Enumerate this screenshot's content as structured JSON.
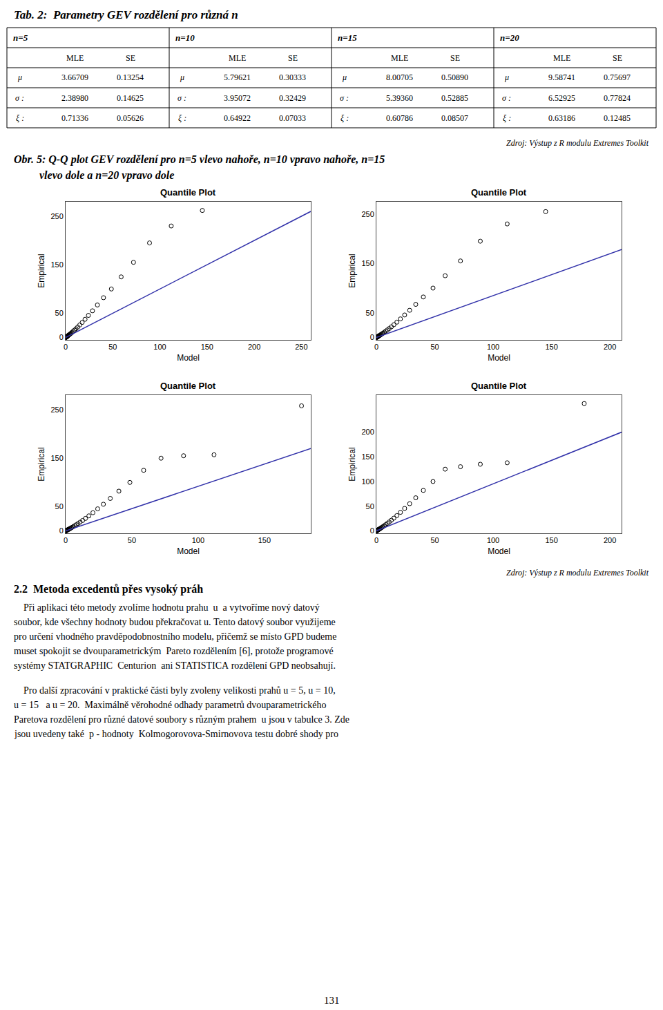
{
  "texts": {
    "table_title": "Tab. 2:  Parametry GEV rozdělení pro různá n",
    "source1": "Zdroj: Výstup z R modulu Extremes Toolkit",
    "caption": [
      "Obr. 5: Q-Q plot GEV rozdělení pro n=5 vlevo nahoře, n=10 vpravo nahoře, n=15",
      "vlevo dole a n=20 vpravo dole"
    ],
    "source2": "Zdroj: Výstup z R modulu Extremes Toolkit",
    "section_heading": "2.2  Metoda excedentů přes vysoký práh",
    "paragraphs": [
      [
        "    Při aplikaci této metody zvolíme hodnotu prahu  u  a vytvoříme nový datový",
        "soubor, kde všechny hodnoty budou překračovat u. Tento datový soubor využijeme",
        "pro určení vhodného pravděpodobnostního modelu, přičemž se místo GPD budeme",
        "muset spokojit se dvouparametrickým  Pareto rozdělením [6], protože programové",
        "systémy STATGRAPHIC  Centurion  ani STATISTICA rozdělení GPD neobsahují."
      ],
      [
        "    Pro další zpracování v praktické části byly zvoleny velikosti prahů u = 5, u = 10,",
        "u = 15   a u = 20.  Maximálně věrohodné odhady parametrů dvouparametrického",
        "Paretova rozdělení pro různé datové soubory s různým prahem  u jsou v tabulce 3. Zde",
        "jsou uvedeny také  p - hodnoty  Kolmogorovova-Smirnovova testu dobré shody pro"
      ]
    ],
    "page_number": "131"
  },
  "table": {
    "groups": [
      {
        "label": "n=5",
        "headers": [
          "MLE",
          "SE"
        ],
        "rows": [
          {
            "label": "μ",
            "values": [
              "3.66709",
              "0.13254"
            ]
          },
          {
            "label": "σ :",
            "values": [
              "2.38980",
              "0.14625"
            ]
          },
          {
            "label": "ξ :",
            "values": [
              "0.71336",
              "0.05626"
            ]
          }
        ]
      },
      {
        "label": "n=10",
        "headers": [
          "MLE",
          "SE"
        ],
        "rows": [
          {
            "label": "μ",
            "values": [
              "5.79621",
              "0.30333"
            ]
          },
          {
            "label": "σ :",
            "values": [
              "3.95072",
              "0.32429"
            ]
          },
          {
            "label": "ξ :",
            "values": [
              "0.64922",
              "0.07033"
            ]
          }
        ]
      },
      {
        "label": "n=15",
        "headers": [
          "MLE",
          "SE"
        ],
        "rows": [
          {
            "label": "μ",
            "values": [
              "8.00705",
              "0.50890"
            ]
          },
          {
            "label": "σ :",
            "values": [
              "5.39360",
              "0.52885"
            ]
          },
          {
            "label": "ξ :",
            "values": [
              "0.60786",
              "0.08507"
            ]
          }
        ]
      },
      {
        "label": "n=20",
        "headers": [
          "MLE",
          "SE"
        ],
        "rows": [
          {
            "label": "μ",
            "values": [
              "9.58741",
              "0.75697"
            ]
          },
          {
            "label": "σ :",
            "values": [
              "6.52925",
              "0.77824"
            ]
          },
          {
            "label": "ξ :",
            "values": [
              "0.63186",
              "0.12485"
            ]
          }
        ]
      }
    ]
  },
  "chart_data": [
    {
      "type": "scatter",
      "title": "Quantile Plot",
      "xlabel": "Model",
      "ylabel": "Empirical",
      "xlim": [
        0,
        260
      ],
      "ylim": [
        -5,
        280
      ],
      "xticks": [
        0,
        50,
        100,
        150,
        200,
        250
      ],
      "yticks": [
        0,
        50,
        150,
        250
      ],
      "grid": false,
      "series": [
        {
          "type": "scatter",
          "marker": "circle-open",
          "color": "#000000",
          "x": [
            0.15,
            0.25,
            0.35,
            0.45,
            0.55,
            0.65,
            0.78,
            0.92,
            1.08,
            1.26,
            1.47,
            1.71,
            2.0,
            2.33,
            2.72,
            3.17,
            3.7,
            4.32,
            5.04,
            5.88,
            6.87,
            8.02,
            9.37,
            10.95,
            12.81,
            14.99,
            17.56,
            20.6,
            24.2,
            28.5,
            33.7,
            40.2,
            48.5,
            58.9,
            72.0,
            89.0,
            112.0,
            145.0
          ],
          "values": [
            0.1,
            0.2,
            0.35,
            0.5,
            0.65,
            0.85,
            1.05,
            1.25,
            1.5,
            1.8,
            2.1,
            2.45,
            2.9,
            3.4,
            4.0,
            4.7,
            5.5,
            6.5,
            7.6,
            9.0,
            10.7,
            12.7,
            15.1,
            18.0,
            21.5,
            25.8,
            31.0,
            37.5,
            45.5,
            55.0,
            67.0,
            82.0,
            100.0,
            125.0,
            155.0,
            195.0,
            230.0,
            262.0
          ]
        },
        {
          "type": "line",
          "line_style": "solid",
          "color": "#3333aa",
          "x": [
            0,
            260
          ],
          "values": [
            0,
            260
          ]
        }
      ]
    },
    {
      "type": "scatter",
      "title": "Quantile Plot",
      "xlabel": "Model",
      "ylabel": "Empirical",
      "xlim": [
        0,
        210
      ],
      "ylim": [
        -5,
        275
      ],
      "xticks": [
        0,
        50,
        100,
        150,
        200
      ],
      "yticks": [
        0,
        50,
        150,
        250
      ],
      "grid": false,
      "series": [
        {
          "type": "scatter",
          "marker": "circle-open",
          "color": "#000000",
          "x": [
            0.15,
            0.25,
            0.35,
            0.45,
            0.55,
            0.65,
            0.78,
            0.92,
            1.08,
            1.26,
            1.47,
            1.71,
            2.0,
            2.33,
            2.72,
            3.17,
            3.7,
            4.32,
            5.04,
            5.88,
            6.87,
            8.02,
            9.37,
            10.95,
            12.81,
            14.99,
            17.56,
            20.6,
            24.2,
            28.5,
            33.7,
            40.2,
            48.5,
            58.9,
            72.0,
            89.0,
            112.0,
            145.0
          ],
          "values": [
            0.1,
            0.2,
            0.35,
            0.5,
            0.65,
            0.85,
            1.05,
            1.25,
            1.5,
            1.8,
            2.1,
            2.45,
            2.9,
            3.4,
            4.0,
            4.7,
            5.5,
            6.5,
            7.6,
            9.0,
            10.7,
            12.7,
            15.1,
            18.0,
            21.5,
            25.8,
            31.0,
            37.5,
            45.5,
            55.0,
            67.0,
            82.0,
            100.0,
            125.0,
            155.0,
            195.0,
            230.0,
            255.0
          ]
        },
        {
          "type": "line",
          "line_style": "solid",
          "color": "#3333aa",
          "x": [
            0,
            210
          ],
          "values": [
            0,
            178
          ]
        }
      ]
    },
    {
      "type": "scatter",
      "title": "Quantile Plot",
      "xlabel": "Model",
      "ylabel": "Empirical",
      "xlim": [
        0,
        185
      ],
      "ylim": [
        -5,
        280
      ],
      "xticks": [
        0,
        50,
        100,
        150
      ],
      "yticks": [
        0,
        50,
        150,
        250
      ],
      "grid": false,
      "series": [
        {
          "type": "scatter",
          "marker": "circle-open",
          "color": "#000000",
          "x": [
            0.15,
            0.25,
            0.35,
            0.45,
            0.55,
            0.65,
            0.78,
            0.92,
            1.08,
            1.26,
            1.47,
            1.71,
            2.0,
            2.33,
            2.72,
            3.17,
            3.7,
            4.32,
            5.04,
            5.88,
            6.87,
            8.02,
            9.37,
            10.95,
            12.81,
            14.99,
            17.56,
            20.6,
            24.2,
            28.5,
            33.7,
            40.2,
            48.5,
            58.9,
            72.0,
            89.0,
            112.0,
            178.0
          ],
          "values": [
            0.1,
            0.2,
            0.35,
            0.5,
            0.65,
            0.85,
            1.05,
            1.25,
            1.5,
            1.8,
            2.1,
            2.45,
            2.9,
            3.4,
            4.0,
            4.7,
            5.5,
            6.5,
            7.6,
            9.0,
            10.7,
            12.7,
            15.1,
            18.0,
            21.5,
            25.8,
            31.0,
            37.5,
            45.5,
            55.0,
            67.0,
            82.0,
            100.0,
            125.0,
            150.0,
            155.0,
            157.0,
            258.0
          ]
        },
        {
          "type": "line",
          "line_style": "solid",
          "color": "#3333aa",
          "x": [
            0,
            185
          ],
          "values": [
            0,
            170
          ]
        }
      ]
    },
    {
      "type": "scatter",
      "title": "Quantile Plot",
      "xlabel": "Model",
      "ylabel": "Empirical",
      "xlim": [
        0,
        210
      ],
      "ylim": [
        -5,
        275
      ],
      "xticks": [
        0,
        50,
        100,
        150,
        200
      ],
      "yticks": [
        0,
        50,
        100,
        150,
        200
      ],
      "grid": false,
      "series": [
        {
          "type": "scatter",
          "marker": "circle-open",
          "color": "#000000",
          "x": [
            0.15,
            0.25,
            0.35,
            0.45,
            0.55,
            0.65,
            0.78,
            0.92,
            1.08,
            1.26,
            1.47,
            1.71,
            2.0,
            2.33,
            2.72,
            3.17,
            3.7,
            4.32,
            5.04,
            5.88,
            6.87,
            8.02,
            9.37,
            10.95,
            12.81,
            14.99,
            17.56,
            20.6,
            24.2,
            28.5,
            33.7,
            40.2,
            48.5,
            58.9,
            72.0,
            89.0,
            112.0,
            178.0
          ],
          "values": [
            0.1,
            0.2,
            0.35,
            0.5,
            0.65,
            0.85,
            1.05,
            1.25,
            1.5,
            1.8,
            2.1,
            2.45,
            2.9,
            3.4,
            4.0,
            4.7,
            5.5,
            6.5,
            7.6,
            9.0,
            10.7,
            12.7,
            15.1,
            18.0,
            21.5,
            25.8,
            31.0,
            37.5,
            45.5,
            55.0,
            67.0,
            82.0,
            100.0,
            125.0,
            130.0,
            135.0,
            138.0,
            258.0
          ]
        },
        {
          "type": "line",
          "line_style": "solid",
          "color": "#3333aa",
          "x": [
            0,
            210
          ],
          "values": [
            0,
            200
          ]
        }
      ]
    }
  ]
}
